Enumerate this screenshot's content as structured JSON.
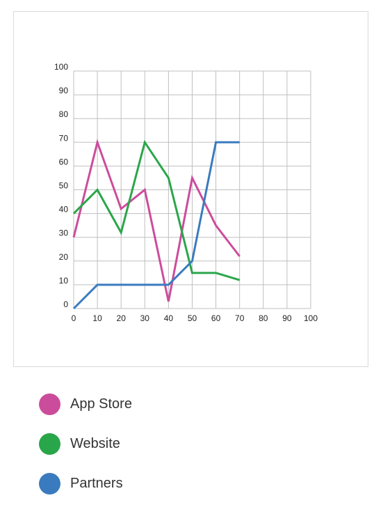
{
  "chart_data": {
    "type": "line",
    "title": "",
    "xlabel": "",
    "ylabel": "",
    "xlim": [
      0,
      100
    ],
    "ylim": [
      0,
      100
    ],
    "x_ticks": [
      0,
      10,
      20,
      30,
      40,
      50,
      60,
      70,
      80,
      90,
      100
    ],
    "y_ticks": [
      0,
      10,
      20,
      30,
      40,
      50,
      60,
      70,
      80,
      90,
      100
    ],
    "grid": true,
    "legend_position": "bottom-left",
    "x": [
      0,
      10,
      20,
      30,
      40,
      50,
      60,
      70
    ],
    "series": [
      {
        "name": "App Store",
        "color": "#cc4c9c",
        "values": [
          30,
          70,
          42,
          50,
          3,
          55,
          35,
          22
        ]
      },
      {
        "name": "Website",
        "color": "#2aa64a",
        "values": [
          40,
          50,
          32,
          70,
          55,
          15,
          15,
          12
        ]
      },
      {
        "name": "Partners",
        "color": "#3a7bbf",
        "values": [
          0,
          10,
          10,
          10,
          10,
          20,
          70,
          70
        ]
      }
    ]
  }
}
